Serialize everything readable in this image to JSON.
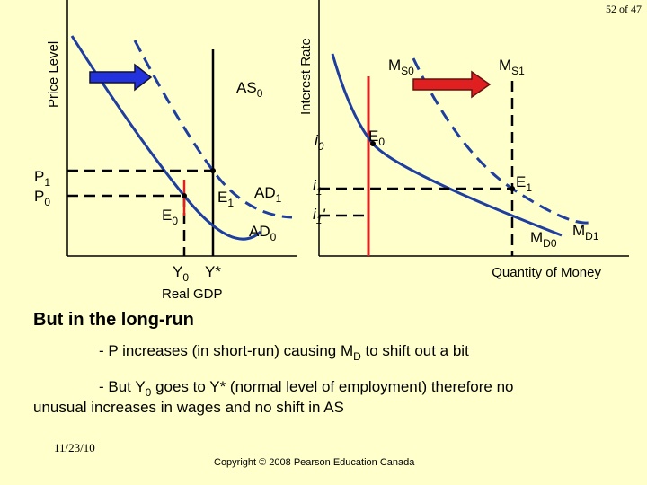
{
  "page_number": "52 of 47",
  "left_diagram": {
    "y_axis_label": "Price Level",
    "x_axis_label": "Real GDP",
    "as_label": {
      "text": "AS",
      "sub": "0"
    },
    "ad1_label": {
      "text": "AD",
      "sub": "1"
    },
    "ad0_label": {
      "text": "AD",
      "sub": "0"
    },
    "p1_label": {
      "text": "P",
      "sub": "1"
    },
    "p0_label": {
      "text": "P",
      "sub": "0"
    },
    "e0_label": {
      "text": "E",
      "sub": "0"
    },
    "e1_label": {
      "text": "E",
      "sub": "1"
    },
    "y0_label": {
      "text": "Y",
      "sub": "0"
    },
    "ystar_label": "Y*"
  },
  "right_diagram": {
    "y_axis_label": "Interest Rate",
    "x_axis_label": "Quantity of Money",
    "ms0_label": {
      "text": "M",
      "sub": "S0"
    },
    "ms1_label": {
      "text": "M",
      "sub": "S1"
    },
    "i0_label": {
      "text": "i",
      "sub": "0"
    },
    "e0_label": {
      "text": "E",
      "sub": "0"
    },
    "i1_label": {
      "text": "i",
      "sub": "1"
    },
    "e1_label": {
      "text": "E",
      "sub": "1"
    },
    "i1p_label": {
      "text": "i",
      "sub": "1",
      "prime": "'"
    },
    "md0_label": {
      "text": "M",
      "sub": "D0"
    },
    "md1_label": {
      "text": "M",
      "sub": "D1"
    }
  },
  "heading": "But in the long-run",
  "bullet_1": {
    "before": "- P increases (in short-run) causing M",
    "sub": "D",
    "after": " to shift out a bit"
  },
  "bullet_2": {
    "before": "- But Y",
    "sub": "0",
    "after": " goes to Y* (normal level of employment) therefore no",
    "line2": "unusual increases in wages and no shift in AS"
  },
  "date": "11/23/10",
  "copyright": "Copyright © 2008 Pearson Education Canada"
}
